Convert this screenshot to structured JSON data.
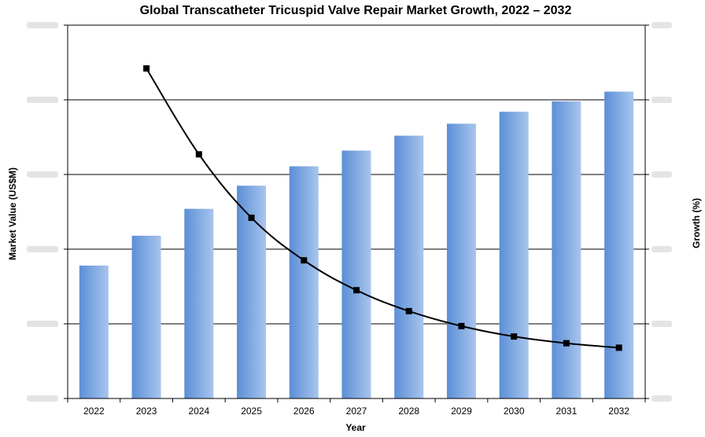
{
  "chart_data": {
    "type": "bar",
    "title": "Global Transcatheter Tricuspid Valve Repair Market Growth, 2022 – 2032",
    "xlabel": "Year",
    "ylabel": "Market Value (US$M)",
    "y2label": "Growth (%)",
    "categories": [
      "2022",
      "2023",
      "2024",
      "2025",
      "2026",
      "2027",
      "2028",
      "2029",
      "2030",
      "2031",
      "2032"
    ],
    "y_axis_ticks_obscured": true,
    "ylim": [
      0,
      5
    ],
    "y2lim": [
      0,
      5
    ],
    "grid": "horizontal",
    "series": [
      {
        "type": "bar",
        "axis": "left",
        "color_start": "#5b8fd6",
        "color_end": "#a9c5ed",
        "values": [
          1.78,
          2.18,
          2.54,
          2.85,
          3.11,
          3.32,
          3.52,
          3.68,
          3.84,
          3.98,
          4.11
        ]
      },
      {
        "type": "line",
        "axis": "right",
        "color": "#000000",
        "marker": "square",
        "values": [
          null,
          4.42,
          3.27,
          2.42,
          1.85,
          1.45,
          1.17,
          0.97,
          0.83,
          0.74,
          0.68
        ]
      }
    ]
  }
}
